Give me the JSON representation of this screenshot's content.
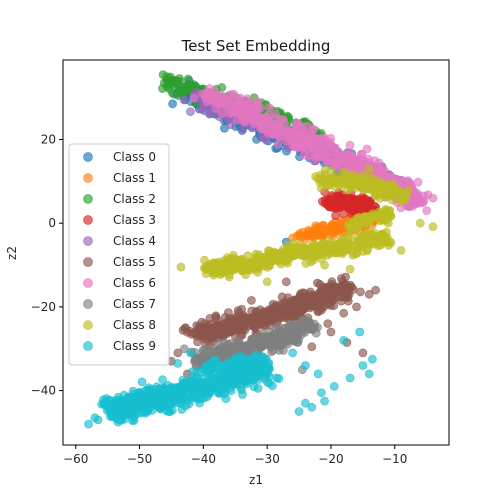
{
  "chart_data": {
    "type": "scatter",
    "title": "Test Set Embedding",
    "xlabel": "z1",
    "ylabel": "z2",
    "xlim": [
      -62,
      -1.5
    ],
    "ylim": [
      -53,
      39
    ],
    "x_ticks": [
      -60,
      -50,
      -40,
      -30,
      -20,
      -10
    ],
    "y_ticks": [
      -40,
      -20,
      0,
      20
    ],
    "x_tick_labels": [
      "−60",
      "−50",
      "−40",
      "−30",
      "−20",
      "−10"
    ],
    "y_tick_labels": [
      "−40",
      "−20",
      "0",
      "20"
    ],
    "grid": false,
    "legend_position": "center-left",
    "marker_opacity": 0.65,
    "series": [
      {
        "name": "Class 0",
        "color": "#1f77b4",
        "draw_order": 0,
        "clusters": [
          {
            "path": [
              [
                -44,
                32
              ],
              [
                -35,
                26
              ],
              [
                -25,
                19
              ],
              [
                -18,
                14
              ],
              [
                -12,
                10
              ]
            ],
            "width": 2.2,
            "count": 260
          },
          {
            "path": [
              [
                -14,
                11
              ],
              [
                -11,
                9
              ]
            ],
            "width": 1.0,
            "count": 25
          }
        ],
        "points": [
          [
            -27,
            -4.5
          ],
          [
            -11.5,
            11.5
          ],
          [
            -10,
            10.5
          ],
          [
            -12.5,
            7.5
          ]
        ]
      },
      {
        "name": "Class 1",
        "color": "#ff7f0e",
        "draw_order": 1,
        "clusters": [
          {
            "path": [
              [
                -25,
                -3
              ],
              [
                -20,
                -1.5
              ],
              [
                -16,
                0
              ],
              [
                -13,
                1.5
              ]
            ],
            "width": 1.4,
            "count": 180
          }
        ],
        "points": [
          [
            -26,
            -3.5
          ],
          [
            -12,
            2
          ],
          [
            -18.5,
            -0.5
          ]
        ]
      },
      {
        "name": "Class 2",
        "color": "#2ca02c",
        "draw_order": 2,
        "clusters": [
          {
            "path": [
              [
                -46,
                34
              ],
              [
                -40,
                31
              ],
              [
                -34,
                28
              ],
              [
                -28,
                25
              ],
              [
                -22,
                21
              ]
            ],
            "width": 1.6,
            "count": 170
          }
        ],
        "points": [
          [
            -45.8,
            35
          ],
          [
            -45.4,
            34.6
          ],
          [
            -44.5,
            34.2
          ],
          [
            -42,
            33
          ],
          [
            -38,
            32
          ],
          [
            -36,
            30.5
          ]
        ]
      },
      {
        "name": "Class 3",
        "color": "#d62728",
        "draw_order": 3,
        "clusters": [
          {
            "path": [
              [
                -20,
                6
              ],
              [
                -17,
                4
              ],
              [
                -14,
                5
              ]
            ],
            "width": 1.8,
            "count": 170
          }
        ],
        "points": [
          [
            -21,
            7.5
          ],
          [
            -13,
            3
          ]
        ]
      },
      {
        "name": "Class 4",
        "color": "#9467bd",
        "draw_order": 4,
        "clusters": [
          {
            "path": [
              [
                -42,
                30
              ],
              [
                -34,
                25.5
              ],
              [
                -26,
                20
              ],
              [
                -18,
                15
              ],
              [
                -10,
                9
              ]
            ],
            "width": 2.0,
            "count": 240
          }
        ],
        "points": [
          [
            -43,
            29.5
          ],
          [
            -8,
            7
          ]
        ]
      },
      {
        "name": "Class 5",
        "color": "#8c564b",
        "draw_order": 5,
        "clusters": [
          {
            "path": [
              [
                -42,
                -27
              ],
              [
                -34,
                -24
              ],
              [
                -28,
                -21.5
              ],
              [
                -22,
                -18
              ],
              [
                -17,
                -15
              ]
            ],
            "width": 2.2,
            "count": 520
          }
        ],
        "points": [
          [
            -45,
            -33
          ],
          [
            -42.5,
            -36
          ],
          [
            -20,
            -26
          ],
          [
            -15,
            -31
          ],
          [
            -17.5,
            -28.5
          ],
          [
            -16,
            -20
          ],
          [
            -13,
            -16
          ],
          [
            -14,
            -17
          ],
          [
            -18,
            -21.5
          ],
          [
            -20.5,
            -24
          ],
          [
            -23,
            -29.5
          ],
          [
            -44,
            -31
          ],
          [
            -27,
            -14
          ]
        ]
      },
      {
        "name": "Class 6",
        "color": "#e377c2",
        "draw_order": 6,
        "clusters": [
          {
            "path": [
              [
                -40,
                31
              ],
              [
                -32,
                25.5
              ],
              [
                -25,
                20.5
              ],
              [
                -18,
                15
              ],
              [
                -10,
                9
              ],
              [
                -6,
                5
              ]
            ],
            "width": 2.2,
            "count": 520
          }
        ],
        "points": [
          [
            -5,
            3
          ],
          [
            -4,
            6
          ],
          [
            -38,
            29.5
          ]
        ]
      },
      {
        "name": "Class 7",
        "color": "#7f7f7f",
        "draw_order": 7,
        "clusters": [
          {
            "path": [
              [
                -41,
                -33
              ],
              [
                -36,
                -31
              ],
              [
                -31,
                -29
              ],
              [
                -26,
                -26.5
              ],
              [
                -23,
                -24
              ]
            ],
            "width": 2.0,
            "count": 360
          }
        ],
        "points": [
          [
            -43,
            -30
          ],
          [
            -24.5,
            -35
          ]
        ]
      },
      {
        "name": "Class 8",
        "color": "#bcbd22",
        "draw_order": 8,
        "clusters": [
          {
            "path": [
              [
                -40,
                -11
              ],
              [
                -34,
                -10
              ],
              [
                -28,
                -8
              ],
              [
                -22,
                -6.5
              ],
              [
                -16,
                -5
              ],
              [
                -11,
                -3.5
              ]
            ],
            "width": 1.8,
            "count": 420
          },
          {
            "path": [
              [
                -22,
                10
              ],
              [
                -16,
                10
              ],
              [
                -12,
                8
              ],
              [
                -8,
                6
              ]
            ],
            "width": 1.6,
            "count": 160
          },
          {
            "path": [
              [
                -17,
                -1
              ],
              [
                -14,
                1
              ],
              [
                -10,
                3
              ]
            ],
            "width": 1.2,
            "count": 60
          }
        ],
        "points": [
          [
            -43.5,
            -10.5
          ],
          [
            -11,
            0
          ],
          [
            -9,
            -6.5
          ],
          [
            -4,
            -0.8
          ],
          [
            -6,
            0
          ],
          [
            -21,
            -10
          ],
          [
            -17,
            -11
          ],
          [
            -20,
            12.5
          ],
          [
            -14,
            13
          ],
          [
            -30,
            -14
          ],
          [
            -27.5,
            -9
          ]
        ]
      },
      {
        "name": "Class 9",
        "color": "#17becf",
        "draw_order": 9,
        "clusters": [
          {
            "path": [
              [
                -55,
                -45
              ],
              [
                -48,
                -42
              ],
              [
                -42,
                -40
              ],
              [
                -36,
                -37
              ],
              [
                -30,
                -35
              ]
            ],
            "width": 2.6,
            "count": 640
          },
          {
            "path": [
              [
                -40,
                -35
              ],
              [
                -35,
                -34
              ],
              [
                -30,
                -33
              ]
            ],
            "width": 1.6,
            "count": 120
          }
        ],
        "points": [
          [
            -58,
            -48
          ],
          [
            -57,
            -46.5
          ],
          [
            -56.5,
            -47
          ],
          [
            -25,
            -45
          ],
          [
            -24,
            -43
          ],
          [
            -23,
            -44
          ],
          [
            -21.5,
            -40.5
          ],
          [
            -21,
            -42.5
          ],
          [
            -19.5,
            -39
          ],
          [
            -17,
            -37
          ],
          [
            -15,
            -34
          ],
          [
            -14,
            -36
          ],
          [
            -13.5,
            -32.5
          ],
          [
            -18,
            -28
          ],
          [
            -15.5,
            -26
          ],
          [
            -24,
            -34
          ],
          [
            -22,
            -36
          ],
          [
            -26,
            -31
          ],
          [
            -44,
            -33.5
          ],
          [
            -42,
            -31
          ]
        ]
      }
    ]
  }
}
